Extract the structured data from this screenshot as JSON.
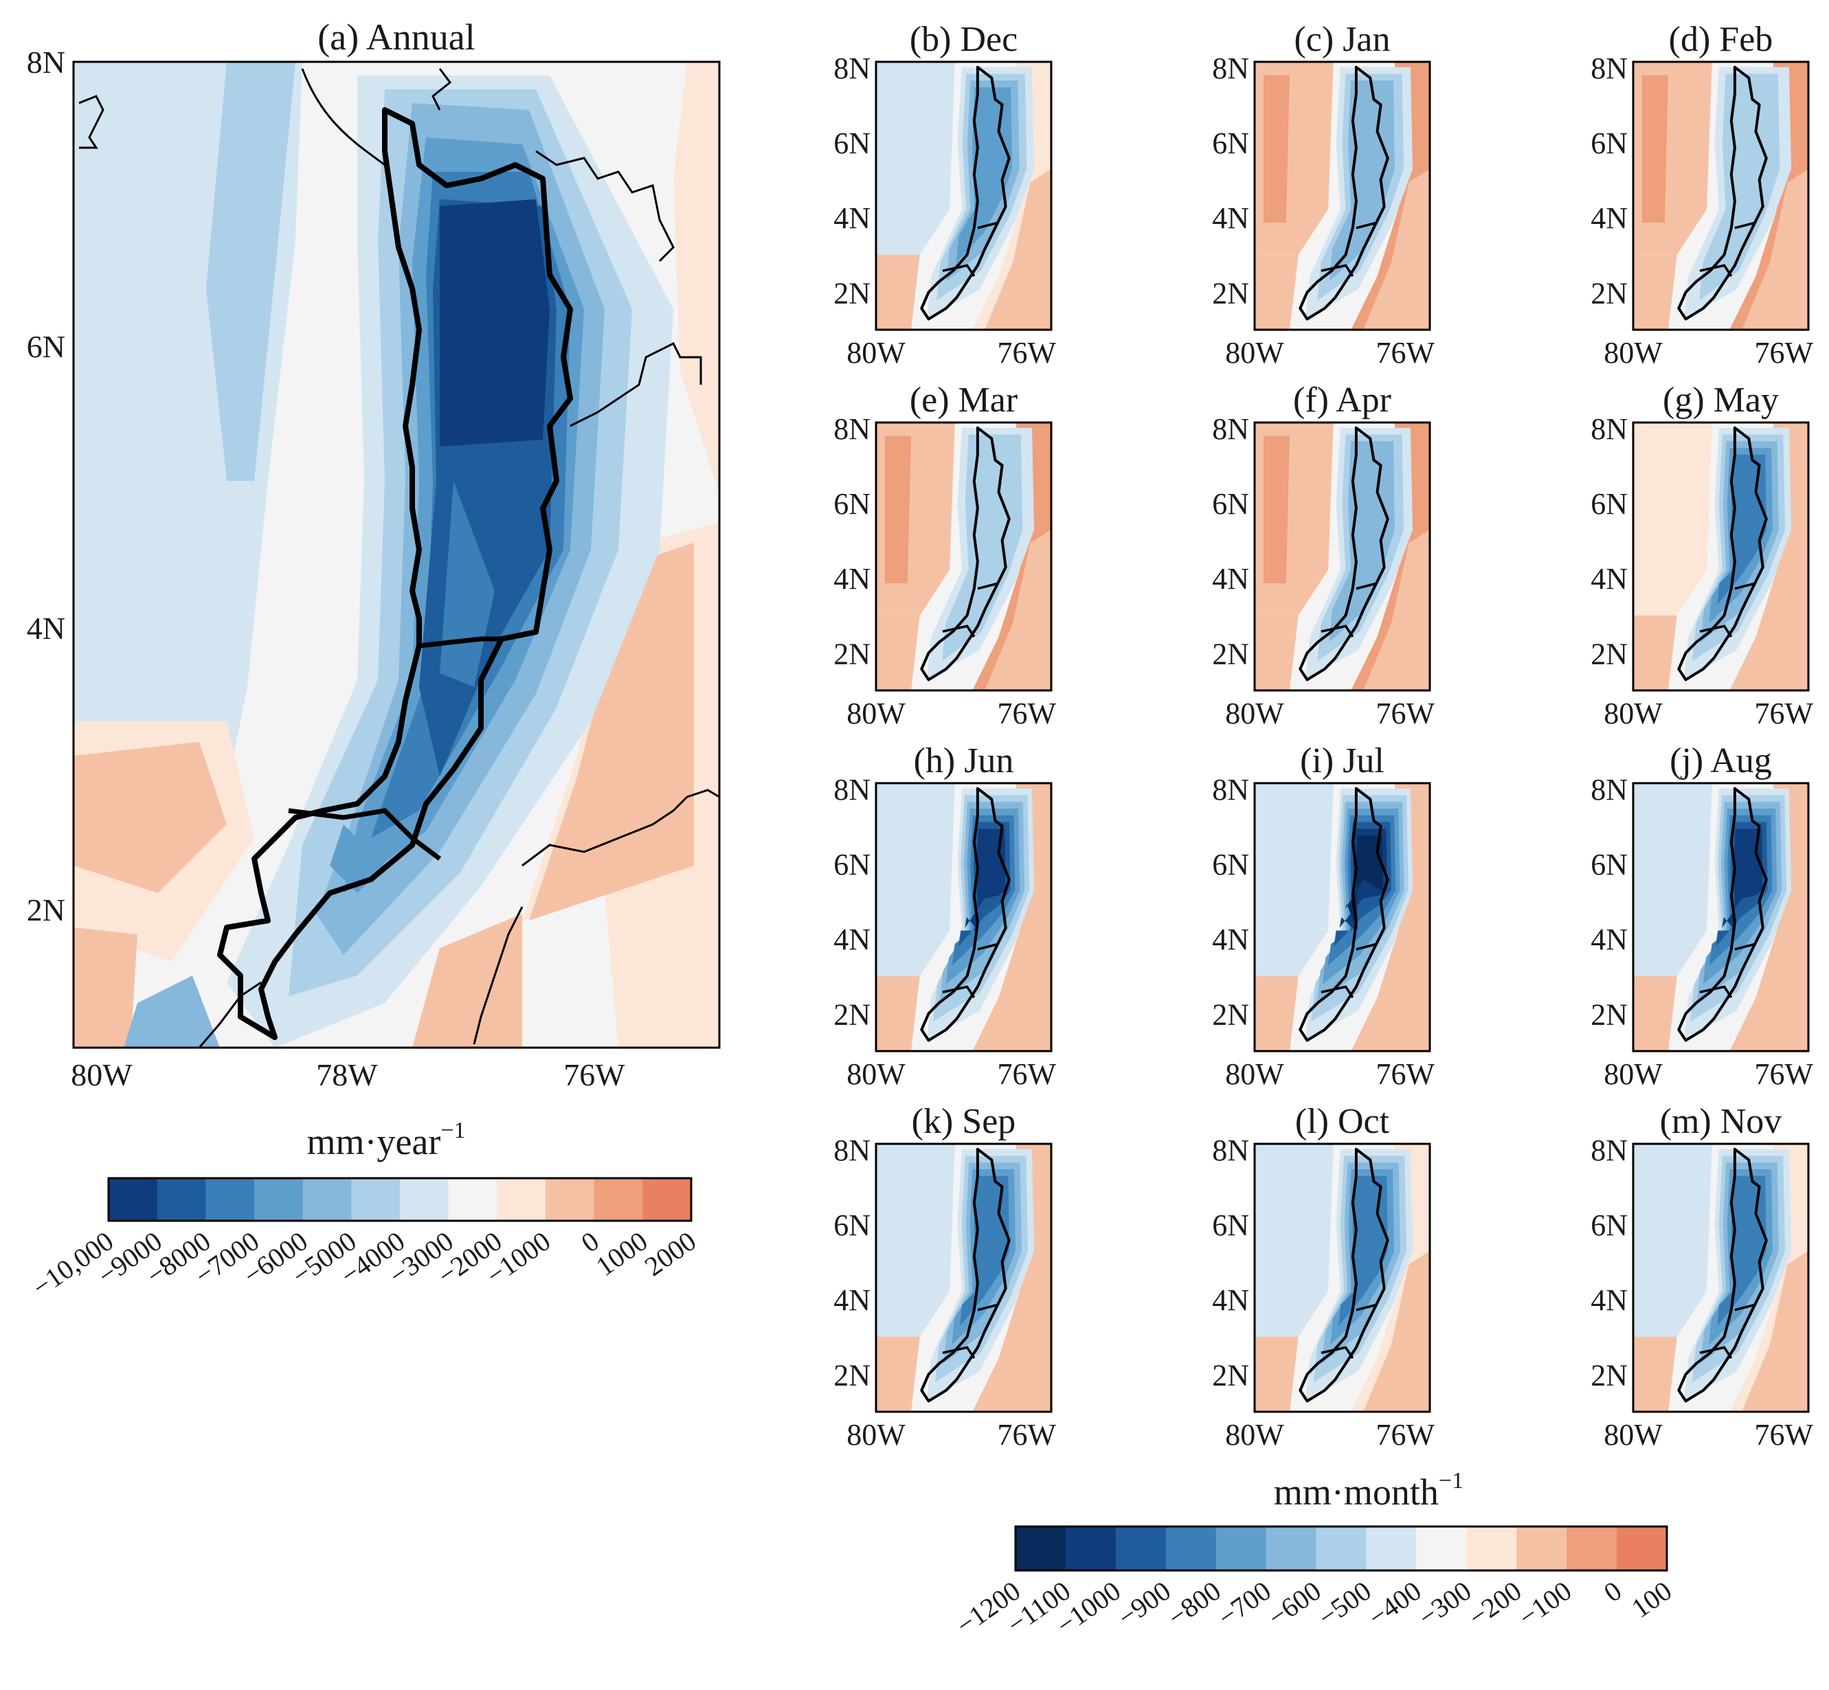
{
  "annual": {
    "title": "(a) Annual",
    "y_ticks": [
      "8N",
      "6N",
      "4N",
      "2N"
    ],
    "x_ticks": [
      "80W",
      "78W",
      "76W"
    ]
  },
  "monthly": {
    "panels": [
      {
        "title": "(b) Dec",
        "intensity": 0.55,
        "offshore": 0.35,
        "east": 0.55
      },
      {
        "title": "(c) Jan",
        "intensity": 0.35,
        "offshore": 0.05,
        "east": 0.85
      },
      {
        "title": "(d) Feb",
        "intensity": 0.3,
        "offshore": 0.0,
        "east": 0.95
      },
      {
        "title": "(e) Mar",
        "intensity": 0.3,
        "offshore": 0.0,
        "east": 0.95
      },
      {
        "title": "(f) Apr",
        "intensity": 0.38,
        "offshore": 0.05,
        "east": 0.85
      },
      {
        "title": "(g) May",
        "intensity": 0.62,
        "offshore": 0.3,
        "east": 0.65
      },
      {
        "title": "(h) Jun",
        "intensity": 0.88,
        "offshore": 0.4,
        "east": 0.7
      },
      {
        "title": "(i) Jul",
        "intensity": 0.98,
        "offshore": 0.4,
        "east": 0.8
      },
      {
        "title": "(j) Aug",
        "intensity": 0.92,
        "offshore": 0.4,
        "east": 0.75
      },
      {
        "title": "(k) Sep",
        "intensity": 0.66,
        "offshore": 0.35,
        "east": 0.65
      },
      {
        "title": "(l) Oct",
        "intensity": 0.64,
        "offshore": 0.4,
        "east": 0.55
      },
      {
        "title": "(m) Nov",
        "intensity": 0.66,
        "offshore": 0.45,
        "east": 0.5
      }
    ],
    "y_ticks": [
      "8N",
      "6N",
      "4N",
      "2N"
    ],
    "x_ticks": [
      "80W",
      "76W"
    ]
  },
  "colorbar_annual": {
    "unit": "mm·year",
    "unit_exp": "−1",
    "ticks": [
      "−10,000",
      "−9000",
      "−8000",
      "−7000",
      "−6000",
      "−5000",
      "−4000",
      "−3000",
      "−2000",
      "−1000",
      "0",
      "1000",
      "2000"
    ],
    "colors": [
      "#0f3c7c",
      "#1f5c9c",
      "#3a7fb7",
      "#5e9ecd",
      "#86b8dc",
      "#acd0e8",
      "#d3e5f1",
      "#f4f4f4",
      "#fbe6d8",
      "#f5c1a4",
      "#ee9f7c",
      "#e8815f"
    ]
  },
  "colorbar_monthly": {
    "unit": "mm·month",
    "unit_exp": "−1",
    "ticks": [
      "−1200",
      "−1100",
      "−1000",
      "−900",
      "−800",
      "−700",
      "−600",
      "−500",
      "−400",
      "−300",
      "−200",
      "−100",
      "0",
      "100"
    ],
    "colors": [
      "#082b5c",
      "#0f3c7c",
      "#1f5c9c",
      "#3a7fb7",
      "#5e9ecd",
      "#86b8dc",
      "#acd0e8",
      "#d3e5f1",
      "#f4f4f4",
      "#fbe6d8",
      "#f5c1a4",
      "#ee9f7c",
      "#e8815f"
    ]
  }
}
